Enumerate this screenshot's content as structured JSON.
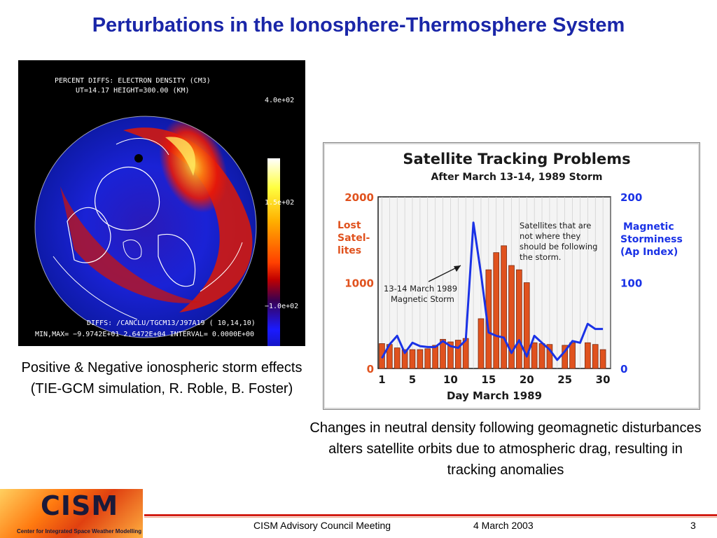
{
  "slide": {
    "title": "Perturbations in the Ionosphere-Thermosphere System",
    "left_caption": "Positive & Negative ionospheric storm effects (TIE-GCM simulation, R. Roble, B. Foster)",
    "right_caption": "Changes in neutral density following geomagnetic disturbances alters satellite orbits due to atmospheric drag, resulting in tracking anomalies"
  },
  "simulation": {
    "header_line1": "PERCENT DIFFS: ELECTRON DENSITY (CM3)",
    "header_line2": "UT=14.17  HEIGHT=300.00 (KM)",
    "colorbar_max": "4.0e+02",
    "colorbar_mid": "1.5e+02",
    "colorbar_min": "−1.0e+02",
    "footer_line1": "DIFFS: /CANCLU/TGCM13/J97A19 ( 10,14,10)",
    "footer_line2": "MIN,MAX= −9.9742E+01  2.6472E+04 INTERVAL=  0.0000E+00"
  },
  "chart_data": {
    "type": "bar",
    "title": "Satellite Tracking Problems",
    "subtitle": "After March 13-14, 1989 Storm",
    "xlabel": "Day March 1989",
    "ylabel_left": "Lost Satel- lites",
    "ylabel_right": "Magnetic Storminess (Ap Index)",
    "x_ticks": [
      "1",
      "5",
      "10",
      "15",
      "20",
      "25",
      "30"
    ],
    "y_ticks_left": [
      "0",
      "1000",
      "2000"
    ],
    "y_ticks_right": [
      "0",
      "100",
      "200"
    ],
    "ylim_left": [
      0,
      2000
    ],
    "ylim_right": [
      0,
      200
    ],
    "annotation_storm": "13-14 March 1989 Magnetic Storm",
    "annotation_satellites": "Satellites that are not where they should be following the storm.",
    "series": [
      {
        "name": "Lost Satel- lites",
        "color": "#e0521e",
        "axis": "left",
        "x": [
          1,
          2,
          3,
          4,
          5,
          6,
          7,
          8,
          9,
          10,
          11,
          12,
          14,
          15,
          16,
          17,
          18,
          19,
          20,
          21,
          22,
          23,
          25,
          26,
          28,
          29,
          30
        ],
        "values": [
          290,
          280,
          240,
          220,
          220,
          220,
          230,
          270,
          340,
          310,
          330,
          350,
          580,
          1150,
          1350,
          1430,
          1200,
          1150,
          1000,
          300,
          290,
          280,
          270,
          300,
          300,
          280,
          220
        ]
      },
      {
        "name": "Magnetic Storminess (Ap Index)",
        "color": "#1a32e6",
        "axis": "right",
        "x": [
          1,
          2,
          3,
          4,
          5,
          6,
          7,
          8,
          9,
          10,
          11,
          12,
          13,
          14,
          15,
          16,
          17,
          18,
          19,
          20,
          21,
          22,
          23,
          24,
          25,
          26,
          27,
          28,
          29,
          30
        ],
        "values": [
          12,
          28,
          38,
          18,
          30,
          26,
          25,
          25,
          32,
          26,
          24,
          33,
          170,
          110,
          42,
          38,
          36,
          18,
          33,
          14,
          38,
          30,
          22,
          10,
          20,
          32,
          30,
          52,
          46,
          46
        ]
      }
    ]
  },
  "footer": {
    "meeting": "CISM Advisory Council Meeting",
    "date": "4 March 2003",
    "page": "3",
    "logo_text": "CISM",
    "logo_subtext": "Center for Integrated Space Weather Modelling"
  }
}
